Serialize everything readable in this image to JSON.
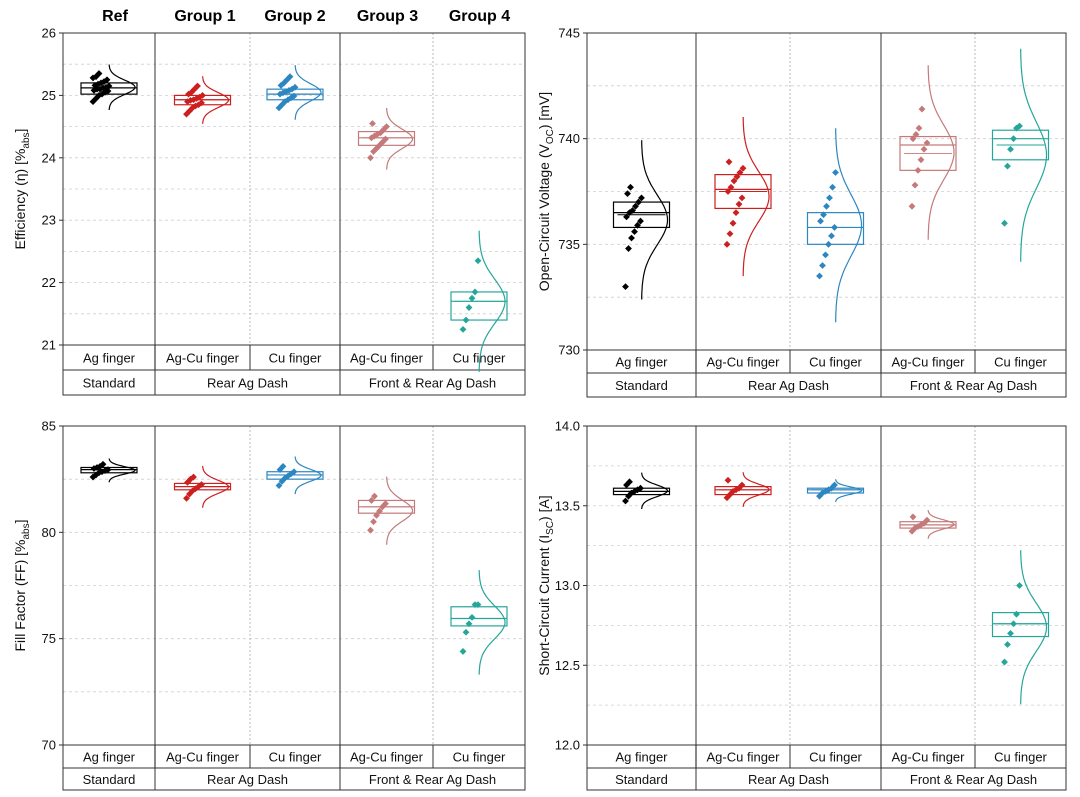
{
  "headers": {
    "ref": "Ref",
    "group1": "Group 1",
    "group2": "Group 2",
    "group3": "Group 3",
    "group4": "Group 4"
  },
  "colors": {
    "ref": "#000000",
    "group1": "#cc1f1f",
    "group2": "#2e86c1",
    "group3": "#c47a7a",
    "group4": "#26a69a"
  },
  "chart_data": [
    {
      "id": "efficiency",
      "type": "box",
      "ylabel": "Efficiency (η) [%abs]",
      "ylabel_main": "Efficiency (η) [%",
      "ylabel_sub": "abs",
      "ylabel_end": "]",
      "ylim": [
        21,
        26
      ],
      "yticks": [
        21,
        22,
        23,
        24,
        25,
        26
      ],
      "ytick_labels": [
        "21",
        "22",
        "23",
        "24",
        "25",
        "26"
      ],
      "categories": [
        "Ag finger",
        "Ag-Cu finger",
        "Cu finger",
        "Ag-Cu finger",
        "Cu finger"
      ],
      "group_labels": [
        "Standard",
        "Rear Ag Dash",
        "Front & Rear Ag Dash"
      ],
      "series": [
        {
          "name": "Ref",
          "q1": 25.02,
          "median": 25.12,
          "q3": 25.2,
          "mean": 25.12,
          "points": [
            24.9,
            24.95,
            25.0,
            25.02,
            25.05,
            25.07,
            25.08,
            25.1,
            25.1,
            25.12,
            25.13,
            25.15,
            25.16,
            25.18,
            25.2,
            25.22,
            25.25,
            25.28,
            25.3,
            25.35
          ]
        },
        {
          "name": "Group 1",
          "q1": 24.85,
          "median": 24.93,
          "q3": 25.0,
          "mean": 24.93,
          "points": [
            24.7,
            24.75,
            24.8,
            24.83,
            24.85,
            24.88,
            24.9,
            24.92,
            24.93,
            24.95,
            24.97,
            25.0,
            25.02,
            25.05,
            25.1,
            25.15
          ]
        },
        {
          "name": "Group 2",
          "q1": 24.93,
          "median": 25.02,
          "q3": 25.1,
          "mean": 25.02,
          "points": [
            24.8,
            24.85,
            24.9,
            24.93,
            24.96,
            24.99,
            25.02,
            25.04,
            25.06,
            25.08,
            25.1,
            25.13,
            25.16,
            25.2,
            25.25,
            25.3
          ]
        },
        {
          "name": "Group 3",
          "q1": 24.2,
          "median": 24.32,
          "q3": 24.42,
          "mean": 24.32,
          "points": [
            24.0,
            24.1,
            24.15,
            24.2,
            24.25,
            24.3,
            24.32,
            24.35,
            24.38,
            24.4,
            24.45,
            24.5,
            24.55
          ]
        },
        {
          "name": "Group 4",
          "q1": 21.4,
          "median": 21.7,
          "q3": 21.85,
          "mean": 21.7,
          "points": [
            21.25,
            21.4,
            21.6,
            21.75,
            21.85,
            22.35
          ]
        }
      ]
    },
    {
      "id": "voc",
      "type": "box",
      "ylabel": "Open-Circuit Voltage (VOC) [mV]",
      "ylabel_main": "Open-Circuit Voltage (V",
      "ylabel_sub": "OC",
      "ylabel_end": ") [mV]",
      "ylim": [
        730,
        745
      ],
      "yticks": [
        730,
        735,
        740,
        745
      ],
      "ytick_labels": [
        "730",
        "735",
        "740",
        "745"
      ],
      "categories": [
        "Ag finger",
        "Ag-Cu finger",
        "Cu finger",
        "Ag-Cu finger",
        "Cu finger"
      ],
      "group_labels": [
        "Standard",
        "Rear Ag Dash",
        "Front & Rear Ag Dash"
      ],
      "series": [
        {
          "name": "Ref",
          "q1": 735.8,
          "median": 736.5,
          "q3": 737.0,
          "mean": 736.4,
          "points": [
            733.0,
            734.8,
            735.3,
            735.6,
            735.9,
            736.1,
            736.3,
            736.5,
            736.6,
            736.8,
            737.0,
            737.2,
            737.4,
            737.7
          ]
        },
        {
          "name": "Group 1",
          "q1": 736.7,
          "median": 737.6,
          "q3": 738.3,
          "mean": 737.5,
          "points": [
            735.0,
            735.5,
            736.0,
            736.5,
            736.9,
            737.2,
            737.5,
            737.7,
            738.0,
            738.2,
            738.4,
            738.6,
            738.9
          ]
        },
        {
          "name": "Group 2",
          "q1": 735.0,
          "median": 735.8,
          "q3": 736.5,
          "mean": 735.8,
          "points": [
            733.5,
            734.0,
            734.5,
            735.0,
            735.4,
            735.8,
            736.1,
            736.4,
            736.8,
            737.2,
            737.7,
            738.4
          ]
        },
        {
          "name": "Group 3",
          "q1": 738.5,
          "median": 739.7,
          "q3": 740.1,
          "mean": 739.3,
          "points": [
            736.8,
            737.8,
            738.5,
            739.0,
            739.5,
            739.8,
            740.0,
            740.2,
            740.5,
            741.4
          ]
        },
        {
          "name": "Group 4",
          "q1": 739.0,
          "median": 740.0,
          "q3": 740.4,
          "mean": 739.7,
          "points": [
            736.0,
            738.7,
            739.5,
            740.0,
            740.5,
            740.6
          ]
        }
      ]
    },
    {
      "id": "ff",
      "type": "box",
      "ylabel": "Fill Factor (FF) [%abs]",
      "ylabel_main": "Fill Factor (FF) [%",
      "ylabel_sub": "abs",
      "ylabel_end": "]",
      "ylim": [
        70,
        85
      ],
      "yticks": [
        70,
        75,
        80,
        85
      ],
      "ytick_labels": [
        "70",
        "75",
        "80",
        "85"
      ],
      "categories": [
        "Ag finger",
        "Ag-Cu finger",
        "Cu finger",
        "Ag-Cu finger",
        "Cu finger"
      ],
      "group_labels": [
        "Standard",
        "Rear Ag Dash",
        "Front & Rear Ag Dash"
      ],
      "series": [
        {
          "name": "Ref",
          "q1": 82.8,
          "median": 82.95,
          "q3": 83.05,
          "mean": 82.95,
          "points": [
            82.6,
            82.7,
            82.8,
            82.85,
            82.9,
            82.95,
            83.0,
            83.05,
            83.1,
            83.2
          ]
        },
        {
          "name": "Group 1",
          "q1": 82.0,
          "median": 82.15,
          "q3": 82.3,
          "mean": 82.15,
          "points": [
            81.6,
            81.8,
            81.95,
            82.05,
            82.15,
            82.25,
            82.35,
            82.5,
            82.6
          ]
        },
        {
          "name": "Group 2",
          "q1": 82.5,
          "median": 82.7,
          "q3": 82.85,
          "mean": 82.7,
          "points": [
            82.2,
            82.4,
            82.55,
            82.65,
            82.75,
            82.85,
            82.95,
            83.1
          ]
        },
        {
          "name": "Group 3",
          "q1": 80.9,
          "median": 81.2,
          "q3": 81.5,
          "mean": 81.2,
          "points": [
            80.1,
            80.5,
            80.8,
            81.0,
            81.2,
            81.35,
            81.5,
            81.7
          ]
        },
        {
          "name": "Group 4",
          "q1": 75.6,
          "median": 75.95,
          "q3": 76.5,
          "mean": 75.95,
          "points": [
            74.4,
            75.3,
            75.7,
            76.0,
            76.6,
            76.6
          ]
        }
      ]
    },
    {
      "id": "isc",
      "type": "box",
      "ylabel": "Short-Circuit Current (ISC) [A]",
      "ylabel_main": "Short-Circuit Current (I",
      "ylabel_sub": "SC",
      "ylabel_end": ") [A]",
      "ylim": [
        12.0,
        14.0
      ],
      "yticks": [
        12.0,
        12.5,
        13.0,
        13.5,
        14.0
      ],
      "ytick_labels": [
        "12.0",
        "12.5",
        "13.0",
        "13.5",
        "14.0"
      ],
      "categories": [
        "Ag finger",
        "Ag-Cu finger",
        "Cu finger",
        "Ag-Cu finger",
        "Cu finger"
      ],
      "group_labels": [
        "Standard",
        "Rear Ag Dash",
        "Front & Rear Ag Dash"
      ],
      "series": [
        {
          "name": "Ref",
          "q1": 13.57,
          "median": 13.59,
          "q3": 13.61,
          "mean": 13.59,
          "points": [
            13.53,
            13.56,
            13.58,
            13.59,
            13.6,
            13.61,
            13.63,
            13.65
          ]
        },
        {
          "name": "Group 1",
          "q1": 13.57,
          "median": 13.6,
          "q3": 13.62,
          "mean": 13.6,
          "points": [
            13.55,
            13.57,
            13.59,
            13.6,
            13.61,
            13.63,
            13.66
          ]
        },
        {
          "name": "Group 2",
          "q1": 13.58,
          "median": 13.6,
          "q3": 13.61,
          "mean": 13.6,
          "points": [
            13.56,
            13.58,
            13.59,
            13.6,
            13.61,
            13.63
          ]
        },
        {
          "name": "Group 3",
          "q1": 13.36,
          "median": 13.38,
          "q3": 13.4,
          "mean": 13.38,
          "points": [
            13.34,
            13.36,
            13.37,
            13.38,
            13.39,
            13.41,
            13.43
          ]
        },
        {
          "name": "Group 4",
          "q1": 12.68,
          "median": 12.76,
          "q3": 12.83,
          "mean": 12.76,
          "points": [
            12.52,
            12.63,
            12.7,
            12.76,
            12.82,
            13.0
          ]
        }
      ]
    }
  ]
}
